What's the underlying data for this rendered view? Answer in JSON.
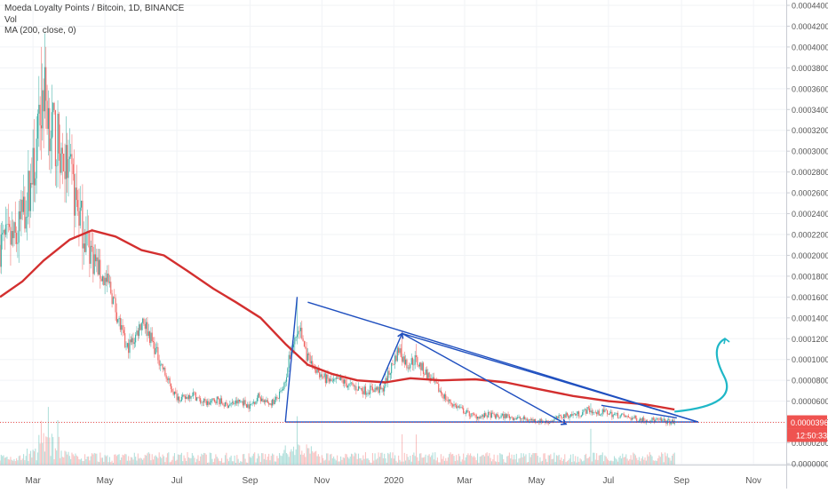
{
  "header": {
    "title": "Moeda Loyalty Points / Bitcoin, 1D, BINANCE",
    "vol_label": "Vol",
    "ma_label": "MA (200, close, 0)"
  },
  "colors": {
    "up": "#26a69a",
    "down": "#ef5350",
    "ma": "#d32f2f",
    "drawing": "#1f4fbf",
    "arrow": "#1fb7c7",
    "price_line": "#ef5350",
    "grid": "#f1f3f6",
    "text": "#555555"
  },
  "chart_data": {
    "type": "candlestick",
    "title": "Moeda Loyalty Points / Bitcoin, 1D, BINANCE",
    "x_ticks": [
      "Mar",
      "May",
      "Jul",
      "Sep",
      "Nov",
      "2020",
      "Mar",
      "May",
      "Jul",
      "Sep",
      "Nov"
    ],
    "y_ticks": [
      "0.00044000",
      "0.00042000",
      "0.00040000",
      "0.00038000",
      "0.00036000",
      "0.00034000",
      "0.00032000",
      "0.00030000",
      "0.00028000",
      "0.00026000",
      "0.00024000",
      "0.00022000",
      "0.00020000",
      "0.00018000",
      "0.00016000",
      "0.00014000",
      "0.00012000",
      "0.00010000",
      "0.00008000",
      "0.00006000",
      "0.00004000",
      "0.00002000",
      "0.00000000"
    ],
    "ylim": [
      0,
      0.00044
    ],
    "grid": true,
    "last_price": "0.00003962",
    "countdown": "12:50:33",
    "price_path": [
      [
        "2019-02-01",
        0.00021
      ],
      [
        "2019-02-15",
        0.000215
      ],
      [
        "2019-02-25",
        0.00026
      ],
      [
        "2019-03-03",
        0.00029
      ],
      [
        "2019-03-10",
        0.00036
      ],
      [
        "2019-03-17",
        0.00032
      ],
      [
        "2019-03-24",
        0.0003
      ],
      [
        "2019-03-31",
        0.00028
      ],
      [
        "2019-04-07",
        0.00025
      ],
      [
        "2019-04-14",
        0.00022
      ],
      [
        "2019-04-21",
        0.0002
      ],
      [
        "2019-04-28",
        0.00018
      ],
      [
        "2019-05-05",
        0.00017
      ],
      [
        "2019-05-12",
        0.00014
      ],
      [
        "2019-05-19",
        0.00011
      ],
      [
        "2019-05-26",
        0.00012
      ],
      [
        "2019-06-02",
        0.00014
      ],
      [
        "2019-06-09",
        0.00012
      ],
      [
        "2019-06-16",
        0.0001
      ],
      [
        "2019-06-23",
        8e-05
      ],
      [
        "2019-06-30",
        6.5e-05
      ],
      [
        "2019-07-07",
        6.2e-05
      ],
      [
        "2019-07-14",
        6.8e-05
      ],
      [
        "2019-07-21",
        6e-05
      ],
      [
        "2019-07-28",
        5.8e-05
      ],
      [
        "2019-08-04",
        6.2e-05
      ],
      [
        "2019-08-11",
        5.6e-05
      ],
      [
        "2019-08-18",
        5.8e-05
      ],
      [
        "2019-08-25",
        6e-05
      ],
      [
        "2019-09-01",
        5.5e-05
      ],
      [
        "2019-09-08",
        6.5e-05
      ],
      [
        "2019-09-15",
        5.8e-05
      ],
      [
        "2019-09-22",
        6e-05
      ],
      [
        "2019-09-29",
        7e-05
      ],
      [
        "2019-10-06",
        0.00011
      ],
      [
        "2019-10-13",
        0.00013
      ],
      [
        "2019-10-20",
        0.0001
      ],
      [
        "2019-10-27",
        9e-05
      ],
      [
        "2019-11-03",
        8.2e-05
      ],
      [
        "2019-11-10",
        7.8e-05
      ],
      [
        "2019-11-17",
        8e-05
      ],
      [
        "2019-11-24",
        7.5e-05
      ],
      [
        "2019-12-01",
        7.3e-05
      ],
      [
        "2019-12-08",
        7e-05
      ],
      [
        "2019-12-15",
        7.2e-05
      ],
      [
        "2019-12-22",
        7e-05
      ],
      [
        "2019-12-29",
        9e-05
      ],
      [
        "2020-01-05",
        0.00011
      ],
      [
        "2020-01-12",
        9.5e-05
      ],
      [
        "2020-01-19",
        0.0001
      ],
      [
        "2020-01-26",
        9e-05
      ],
      [
        "2020-02-02",
        8e-05
      ],
      [
        "2020-02-09",
        7e-05
      ],
      [
        "2020-02-16",
        6e-05
      ],
      [
        "2020-02-23",
        5.5e-05
      ],
      [
        "2020-03-01",
        5e-05
      ],
      [
        "2020-03-08",
        4.6e-05
      ],
      [
        "2020-03-15",
        4.5e-05
      ],
      [
        "2020-03-22",
        4.7e-05
      ],
      [
        "2020-03-29",
        4.5e-05
      ],
      [
        "2020-04-05",
        4.6e-05
      ],
      [
        "2020-04-12",
        4.4e-05
      ],
      [
        "2020-04-19",
        4.3e-05
      ],
      [
        "2020-04-26",
        4.2e-05
      ],
      [
        "2020-05-03",
        4.1e-05
      ],
      [
        "2020-05-10",
        4e-05
      ],
      [
        "2020-05-17",
        4.3e-05
      ],
      [
        "2020-05-24",
        4.6e-05
      ],
      [
        "2020-05-31",
        4.7e-05
      ],
      [
        "2020-06-07",
        4.8e-05
      ],
      [
        "2020-06-14",
        5.2e-05
      ],
      [
        "2020-06-21",
        4.8e-05
      ],
      [
        "2020-06-28",
        5e-05
      ],
      [
        "2020-07-05",
        4.7e-05
      ],
      [
        "2020-07-12",
        4.6e-05
      ],
      [
        "2020-07-19",
        4.4e-05
      ],
      [
        "2020-07-26",
        4.3e-05
      ],
      [
        "2020-08-02",
        4.2e-05
      ],
      [
        "2020-08-09",
        4.2e-05
      ],
      [
        "2020-08-16",
        4.1e-05
      ],
      [
        "2020-08-23",
        4e-05
      ],
      [
        "2020-08-26",
        3.962e-05
      ]
    ],
    "spikes": [
      [
        "2019-03-08",
        0.0004
      ],
      [
        "2019-03-14",
        0.00034
      ],
      [
        "2019-03-22",
        0.000325
      ],
      [
        "2019-10-11",
        0.00016
      ],
      [
        "2020-01-08",
        0.000128
      ],
      [
        "2020-01-20",
        0.000115
      ],
      [
        "2020-06-16",
        5.8e-05
      ]
    ],
    "ma_path": [
      [
        "2019-02-01",
        0.00016
      ],
      [
        "2019-02-20",
        0.000175
      ],
      [
        "2019-03-10",
        0.000195
      ],
      [
        "2019-04-01",
        0.000215
      ],
      [
        "2019-04-20",
        0.000224
      ],
      [
        "2019-05-10",
        0.000218
      ],
      [
        "2019-06-01",
        0.000205
      ],
      [
        "2019-06-20",
        0.0002
      ],
      [
        "2019-07-10",
        0.000185
      ],
      [
        "2019-08-01",
        0.000168
      ],
      [
        "2019-08-20",
        0.000155
      ],
      [
        "2019-09-10",
        0.00014
      ],
      [
        "2019-10-01",
        0.000115
      ],
      [
        "2019-10-20",
        9.5e-05
      ],
      [
        "2019-11-10",
        8.6e-05
      ],
      [
        "2019-12-01",
        8e-05
      ],
      [
        "2019-12-25",
        7.8e-05
      ],
      [
        "2020-01-15",
        8.2e-05
      ],
      [
        "2020-02-10",
        8e-05
      ],
      [
        "2020-03-10",
        8.1e-05
      ],
      [
        "2020-04-05",
        7.8e-05
      ],
      [
        "2020-05-01",
        7.2e-05
      ],
      [
        "2020-06-01",
        6.5e-05
      ],
      [
        "2020-07-01",
        6e-05
      ],
      [
        "2020-08-01",
        5.7e-05
      ],
      [
        "2020-08-26",
        5.2e-05
      ]
    ],
    "drawing_lines": [
      [
        [
          "2019-10-01",
          4e-05
        ],
        [
          "2019-10-11",
          0.00016
        ]
      ],
      [
        [
          "2019-10-01",
          4e-05
        ],
        [
          "2020-09-15",
          4e-05
        ]
      ],
      [
        [
          "2019-10-20",
          0.000155
        ],
        [
          "2020-09-15",
          4e-05
        ]
      ],
      [
        [
          "2019-12-20",
          7.5e-05
        ],
        [
          "2020-01-08",
          0.000125
        ]
      ],
      [
        [
          "2020-01-08",
          0.000125
        ],
        [
          "2020-05-26",
          3.8e-05
        ]
      ],
      [
        [
          "2020-01-08",
          0.000125
        ],
        [
          "2020-09-15",
          4e-05
        ]
      ],
      [
        [
          "2020-06-25",
          5.6e-05
        ],
        [
          "2020-08-28",
          4.4e-05
        ]
      ]
    ],
    "forecast_arrow": [
      [
        "2020-08-26",
        5e-05
      ],
      [
        "2020-10-01",
        6e-05
      ],
      [
        "2020-10-08",
        0.00012
      ]
    ]
  }
}
